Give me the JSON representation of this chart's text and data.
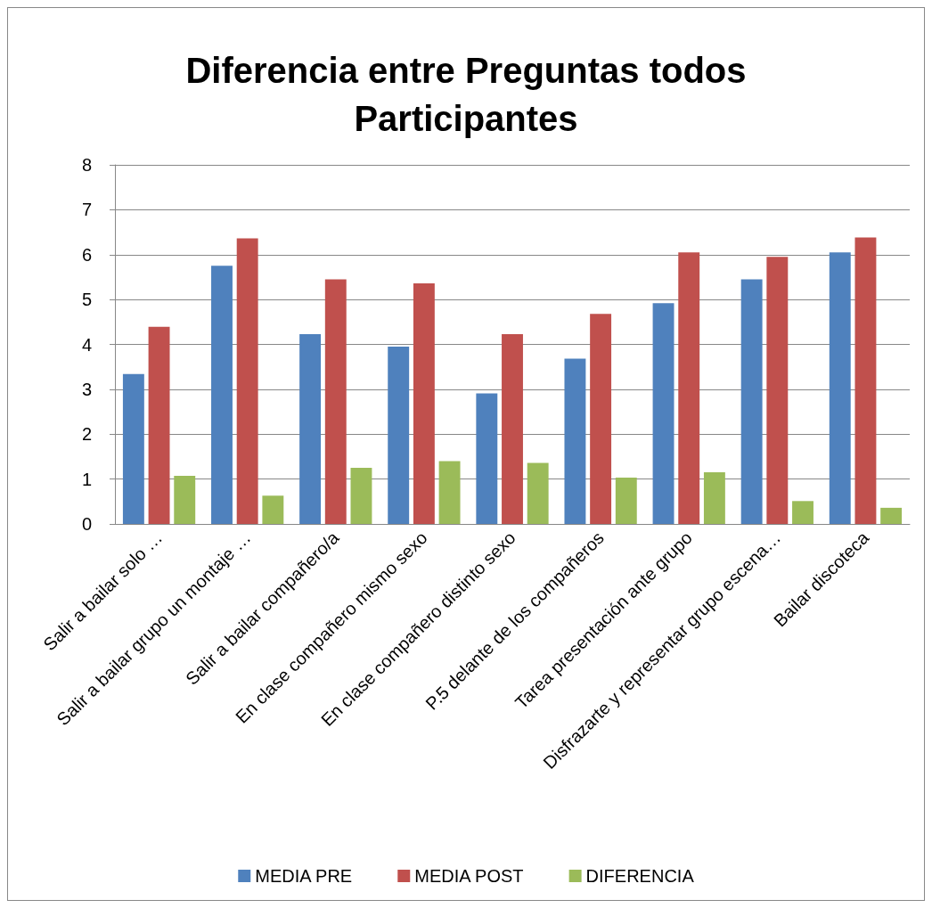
{
  "chart_data": {
    "type": "bar",
    "title": "Diferencia entre Preguntas todos\nParticipantes",
    "categories": [
      "Salir a bailar solo …",
      "Salir a bailar grupo un montaje …",
      "Salir a bailar compañero/a",
      "En clase compañero mismo sexo",
      "En clase compañero distinto sexo",
      "P.5 delante de los compañeros",
      "Tarea presentación ante grupo",
      "Disfrazarte y representar grupo escena…",
      "Bailar discoteca"
    ],
    "series": [
      {
        "name": "MEDIA PRE",
        "color": "#4f81bd",
        "values": [
          3.34,
          5.75,
          4.23,
          3.95,
          2.91,
          3.68,
          4.92,
          5.45,
          6.05
        ]
      },
      {
        "name": "MEDIA POST",
        "color": "#c0504d",
        "values": [
          4.39,
          6.36,
          5.45,
          5.36,
          4.23,
          4.68,
          6.05,
          5.95,
          6.38
        ]
      },
      {
        "name": "DIFERENCIA",
        "color": "#9bbb59",
        "values": [
          1.07,
          0.63,
          1.25,
          1.4,
          1.36,
          1.03,
          1.15,
          0.51,
          0.36
        ]
      }
    ],
    "ylim": [
      0,
      8
    ],
    "yticks": [
      0,
      1,
      2,
      3,
      4,
      5,
      6,
      7,
      8
    ],
    "grid": "y",
    "legend": "bottom"
  }
}
